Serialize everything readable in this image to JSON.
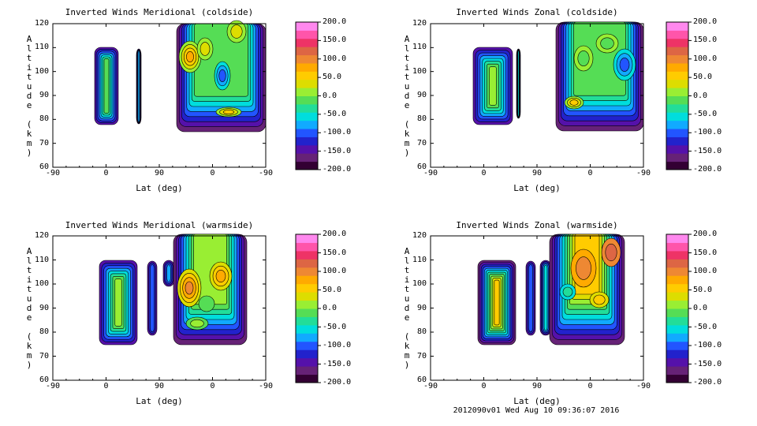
{
  "footer": "2012090v01 Wed Aug 10 09:36:07 2016",
  "colorbar_colors": [
    "#330033",
    "#662277",
    "#5511aa",
    "#2222cc",
    "#2255ff",
    "#11aaff",
    "#00dddd",
    "#22dd99",
    "#55dd55",
    "#99ee33",
    "#dddd00",
    "#ffcc00",
    "#ffaa00",
    "#ee8833",
    "#dd6644",
    "#ee3366",
    "#ff55aa",
    "#ff88ee"
  ],
  "chart_data": [
    {
      "type": "contour",
      "title": "Inverted Winds Meridional (coldside)",
      "xlabel": "Lat (deg)",
      "ylabel": "Altitude (km)",
      "xticks": [
        "-90",
        "0",
        "90",
        "0",
        "-90"
      ],
      "yticks": [
        "60",
        "70",
        "80",
        "90",
        "100",
        "110",
        "120"
      ],
      "ylim": [
        60,
        120
      ],
      "colorbar_ticks": [
        "200.0",
        "150.0",
        "100.0",
        "50.0",
        "0.0",
        "-50.0",
        "-100.0",
        "-150.0",
        "-200.0"
      ],
      "colorbar_range": [
        -200,
        200
      ]
    },
    {
      "type": "contour",
      "title": "Inverted Winds Zonal (coldside)",
      "xlabel": "Lat (deg)",
      "ylabel": "Altitude (km)",
      "xticks": [
        "-90",
        "0",
        "90",
        "0",
        "-90"
      ],
      "yticks": [
        "60",
        "70",
        "80",
        "90",
        "100",
        "110",
        "120"
      ],
      "ylim": [
        60,
        120
      ],
      "colorbar_ticks": [
        "200.0",
        "150.0",
        "100.0",
        "50.0",
        "0.0",
        "-50.0",
        "-100.0",
        "-150.0",
        "-200.0"
      ],
      "colorbar_range": [
        -200,
        200
      ]
    },
    {
      "type": "contour",
      "title": "Inverted Winds Meridional (warmside)",
      "xlabel": "Lat (deg)",
      "ylabel": "Altitude (km)",
      "xticks": [
        "-90",
        "0",
        "90",
        "0",
        "-90"
      ],
      "yticks": [
        "60",
        "70",
        "80",
        "90",
        "100",
        "110",
        "120"
      ],
      "ylim": [
        60,
        120
      ],
      "colorbar_ticks": [
        "200.0",
        "150.0",
        "100.0",
        "50.0",
        "0.0",
        "-50.0",
        "-100.0",
        "-150.0",
        "-200.0"
      ],
      "colorbar_range": [
        -200,
        200
      ]
    },
    {
      "type": "contour",
      "title": "Inverted Winds Zonal (warmside)",
      "xlabel": "Lat (deg)",
      "ylabel": "Altitude (km)",
      "xticks": [
        "-90",
        "0",
        "90",
        "0",
        "-90"
      ],
      "yticks": [
        "60",
        "70",
        "80",
        "90",
        "100",
        "110",
        "120"
      ],
      "ylim": [
        60,
        120
      ],
      "colorbar_ticks": [
        "200.0",
        "150.0",
        "100.0",
        "50.0",
        "0.0",
        "-50.0",
        "-100.0",
        "-150.0",
        "-200.0"
      ],
      "colorbar_range": [
        -200,
        200
      ]
    }
  ]
}
